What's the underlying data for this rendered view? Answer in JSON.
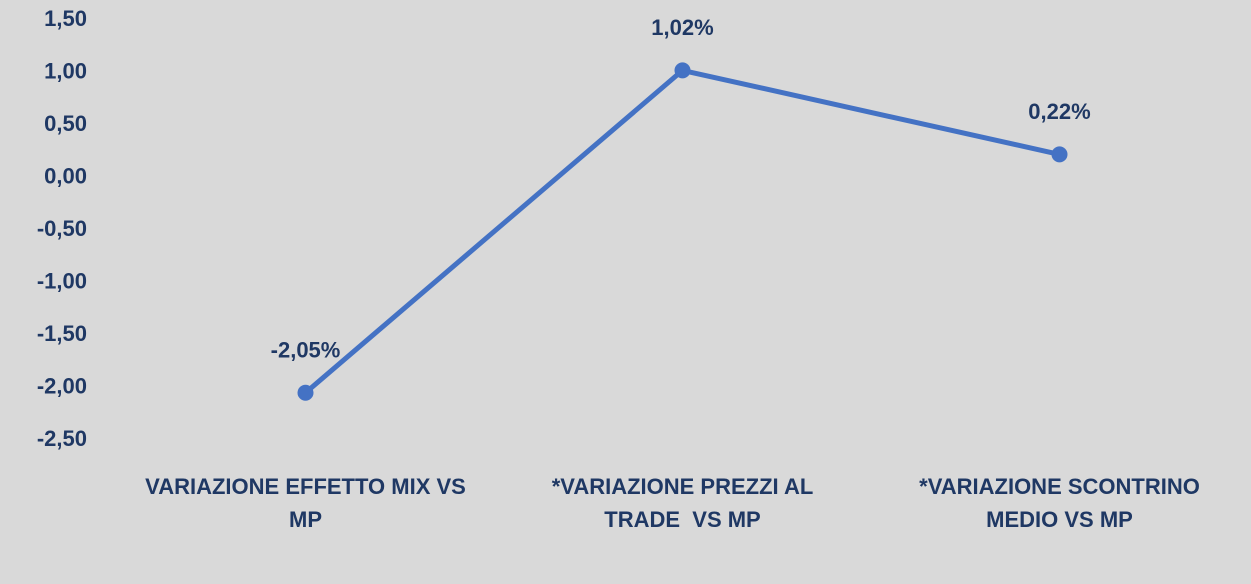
{
  "chart_data": {
    "type": "line",
    "categories": [
      "VARIAZIONE EFFETTO MIX VS MP",
      "*VARIAZIONE PREZZI AL TRADE  VS MP",
      "*VARIAZIONE SCONTRINO MEDIO VS MP"
    ],
    "series": [
      {
        "name": null,
        "color": "#4472c4",
        "values": [
          -2.05,
          1.02,
          0.22
        ],
        "value_labels": [
          "-2,05%",
          "1,02%",
          "0,22%"
        ]
      }
    ],
    "ylim": [
      -2.5,
      1.5
    ],
    "yticks": [
      {
        "value": -2.5,
        "label": "-2,50"
      },
      {
        "value": -2,
        "label": "-2,00"
      },
      {
        "value": -1.5,
        "label": "-1,50"
      },
      {
        "value": -1,
        "label": "-1,00"
      },
      {
        "value": -0.5,
        "label": "-0,50"
      },
      {
        "value": 0,
        "label": "0,00"
      },
      {
        "value": 0.5,
        "label": "0,50"
      },
      {
        "value": 1,
        "label": "1,00"
      },
      {
        "value": 1.5,
        "label": "1,50"
      }
    ],
    "grid": false
  }
}
